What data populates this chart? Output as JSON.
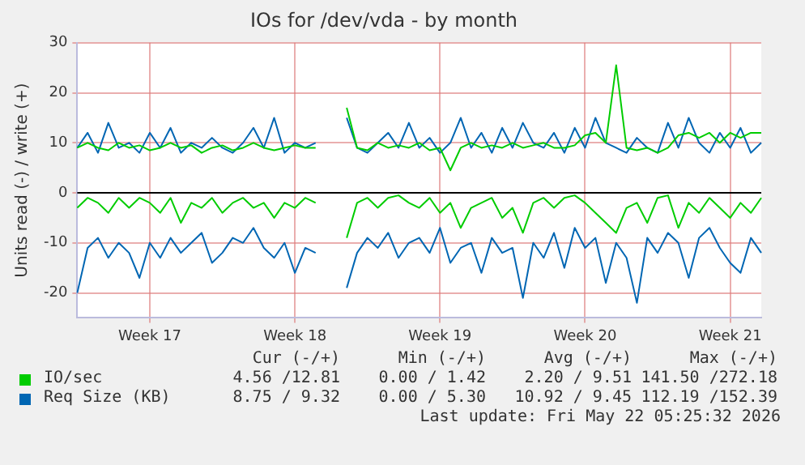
{
  "chart_data": {
    "type": "line",
    "title": "IOs for /dev/vda - by month",
    "ylabel": "Units read (-) / write (+)",
    "categories": [
      null,
      null,
      null,
      null,
      null,
      null,
      null,
      "Week 17",
      null,
      null,
      null,
      null,
      null,
      null,
      null,
      null,
      null,
      null,
      null,
      null,
      null,
      "Week 18",
      null,
      null,
      null,
      null,
      null,
      null,
      null,
      null,
      null,
      null,
      null,
      null,
      null,
      "Week 19",
      null,
      null,
      null,
      null,
      null,
      null,
      null,
      null,
      null,
      null,
      null,
      null,
      null,
      "Week 20",
      null,
      null,
      null,
      null,
      null,
      null,
      null,
      null,
      null,
      null,
      null,
      null,
      null,
      "Week 21",
      null,
      null,
      null
    ],
    "series": [
      {
        "name": "IO/sec",
        "color": "#00cc00",
        "values": [
          9,
          10,
          9,
          8.5,
          10,
          9,
          9.5,
          8.5,
          9,
          10,
          9,
          9.5,
          8,
          9,
          9.5,
          8.5,
          9,
          10,
          9,
          8.5,
          9,
          9.5,
          9,
          9,
          null,
          null,
          17,
          9,
          8.5,
          10,
          9,
          9.5,
          9,
          10,
          8.5,
          9,
          4.5,
          9,
          10,
          9,
          9.5,
          9,
          10,
          9,
          9.5,
          10,
          9,
          9,
          9.5,
          11.5,
          12,
          10,
          25.5,
          9,
          8.5,
          9,
          8,
          9,
          11.5,
          12,
          11,
          12,
          10,
          12,
          11,
          12,
          12
        ]
      },
      {
        "name": "Req Size (KB)",
        "color": "#0066b3",
        "values": [
          9,
          12,
          8,
          14,
          9,
          10,
          8,
          12,
          9,
          13,
          8,
          10,
          9,
          11,
          9,
          8,
          10,
          13,
          9,
          15,
          8,
          10,
          9,
          10,
          null,
          null,
          15,
          9,
          8,
          10,
          12,
          9,
          14,
          9,
          11,
          8,
          10,
          15,
          9,
          12,
          8,
          13,
          9,
          14,
          10,
          9,
          12,
          8,
          13,
          9,
          15,
          10,
          9,
          8,
          11,
          9,
          8,
          14,
          9,
          15,
          10,
          8,
          12,
          9,
          13,
          8,
          10
        ]
      },
      {
        "color": "#00cc00",
        "values": [
          -3,
          -1,
          -2,
          -4,
          -1,
          -3,
          -1,
          -2,
          -4,
          -1,
          -6,
          -2,
          -3,
          -1,
          -4,
          -2,
          -1,
          -3,
          -2,
          -5,
          -2,
          -3,
          -1,
          -2,
          null,
          null,
          -9,
          -2,
          -1,
          -3,
          -1,
          -0.5,
          -2,
          -3,
          -1,
          -4,
          -2,
          -7,
          -3,
          -2,
          -1,
          -5,
          -3,
          -8,
          -2,
          -1,
          -3,
          -1,
          -0.5,
          -2,
          -4,
          -6,
          -8,
          -3,
          -2,
          -6,
          -1,
          -0.5,
          -7,
          -2,
          -4,
          -1,
          -3,
          -5,
          -2,
          -4,
          -1
        ]
      },
      {
        "color": "#0066b3",
        "values": [
          -20,
          -11,
          -9,
          -13,
          -10,
          -12,
          -17,
          -10,
          -13,
          -9,
          -12,
          -10,
          -8,
          -14,
          -12,
          -9,
          -10,
          -7,
          -11,
          -13,
          -10,
          -16,
          -11,
          -12,
          null,
          null,
          -19,
          -12,
          -9,
          -11,
          -8,
          -13,
          -10,
          -9,
          -12,
          -7,
          -14,
          -11,
          -10,
          -16,
          -9,
          -12,
          -11,
          -21,
          -10,
          -13,
          -8,
          -15,
          -7,
          -11,
          -9,
          -18,
          -10,
          -13,
          -22,
          -9,
          -12,
          -8,
          -10,
          -17,
          -9,
          -7,
          -11,
          -14,
          -16,
          -9,
          -12
        ]
      }
    ],
    "ylim": [
      -25,
      30
    ],
    "yticks": [
      -20,
      -10,
      0,
      10,
      20,
      30
    ],
    "grid": true,
    "legend": "bottom",
    "ref_lines": [
      {
        "axis": "y",
        "value": 0,
        "color": "#000000"
      }
    ],
    "annotations": [
      "Cur (-/+)",
      "Min (-/+)",
      "Avg (-/+)",
      "Max (-/+)",
      "4.56 /12.81",
      "0.00 / 1.42",
      "2.20 / 9.51",
      "141.50 /272.18",
      "8.75 / 9.32",
      "0.00 / 5.30",
      "10.92 / 9.45",
      "112.19 /152.39",
      "Last update: Fri May 22 05:25:32 2026"
    ]
  }
}
